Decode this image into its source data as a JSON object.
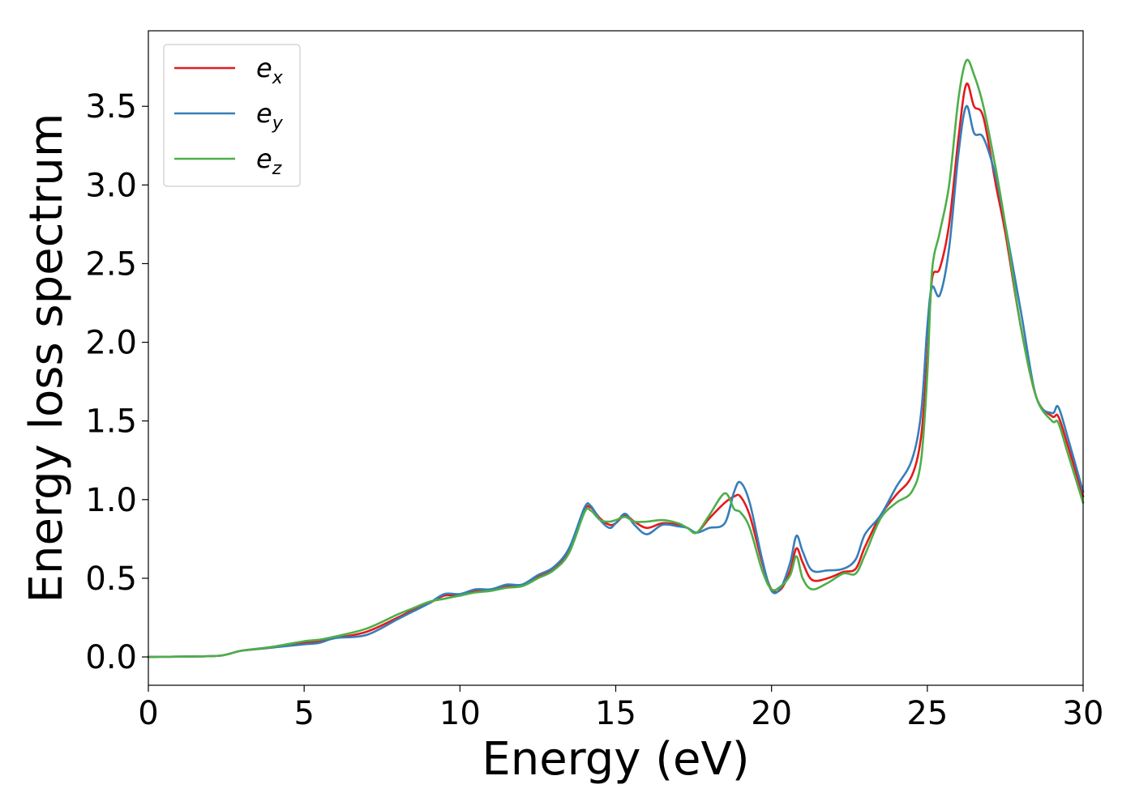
{
  "chart_data": {
    "type": "line",
    "title": "",
    "xlabel": "Energy (eV)",
    "ylabel": "Energy loss spectrum",
    "xlim": [
      0,
      30
    ],
    "ylim": [
      -0.18,
      3.98
    ],
    "xticks": [
      0,
      5,
      10,
      15,
      20,
      25,
      30
    ],
    "xtick_labels": [
      "0",
      "5",
      "10",
      "15",
      "20",
      "25",
      "30"
    ],
    "yticks": [
      0.0,
      0.5,
      1.0,
      1.5,
      2.0,
      2.5,
      3.0,
      3.5
    ],
    "ytick_labels": [
      "0.0",
      "0.5",
      "1.0",
      "1.5",
      "2.0",
      "2.5",
      "3.0",
      "3.5"
    ],
    "grid": false,
    "legend_position": "top-left",
    "series": [
      {
        "name": "e_x",
        "legend_base": "e",
        "legend_sub": "x",
        "color": "#e41a1c",
        "points": [
          [
            0,
            0
          ],
          [
            2,
            0.005
          ],
          [
            2.5,
            0.015
          ],
          [
            3,
            0.04
          ],
          [
            4,
            0.06
          ],
          [
            5,
            0.09
          ],
          [
            5.5,
            0.1
          ],
          [
            6,
            0.12
          ],
          [
            7,
            0.16
          ],
          [
            8,
            0.25
          ],
          [
            8.5,
            0.3
          ],
          [
            9,
            0.34
          ],
          [
            9.5,
            0.39
          ],
          [
            10,
            0.39
          ],
          [
            10.5,
            0.42
          ],
          [
            11,
            0.43
          ],
          [
            11.5,
            0.45
          ],
          [
            12,
            0.46
          ],
          [
            12.5,
            0.51
          ],
          [
            13,
            0.56
          ],
          [
            13.5,
            0.68
          ],
          [
            14,
            0.93
          ],
          [
            14.2,
            0.95
          ],
          [
            14.5,
            0.88
          ],
          [
            14.8,
            0.84
          ],
          [
            15,
            0.85
          ],
          [
            15.3,
            0.9
          ],
          [
            15.6,
            0.86
          ],
          [
            16,
            0.82
          ],
          [
            16.5,
            0.85
          ],
          [
            17,
            0.84
          ],
          [
            17.3,
            0.82
          ],
          [
            17.6,
            0.79
          ],
          [
            18,
            0.88
          ],
          [
            18.5,
            0.98
          ],
          [
            18.8,
            1.02
          ],
          [
            19,
            1.02
          ],
          [
            19.3,
            0.9
          ],
          [
            19.7,
            0.6
          ],
          [
            20,
            0.43
          ],
          [
            20.3,
            0.43
          ],
          [
            20.6,
            0.55
          ],
          [
            20.8,
            0.69
          ],
          [
            21,
            0.6
          ],
          [
            21.3,
            0.49
          ],
          [
            21.8,
            0.5
          ],
          [
            22.3,
            0.54
          ],
          [
            22.7,
            0.56
          ],
          [
            23,
            0.7
          ],
          [
            23.5,
            0.9
          ],
          [
            24,
            1.03
          ],
          [
            24.5,
            1.15
          ],
          [
            24.8,
            1.4
          ],
          [
            25,
            1.9
          ],
          [
            25.15,
            2.4
          ],
          [
            25.4,
            2.47
          ],
          [
            25.7,
            2.75
          ],
          [
            26,
            3.3
          ],
          [
            26.25,
            3.64
          ],
          [
            26.5,
            3.5
          ],
          [
            26.8,
            3.43
          ],
          [
            27.2,
            3.0
          ],
          [
            27.5,
            2.7
          ],
          [
            28,
            2.1
          ],
          [
            28.5,
            1.65
          ],
          [
            29,
            1.53
          ],
          [
            29.2,
            1.53
          ],
          [
            29.5,
            1.35
          ],
          [
            30,
            1.02
          ]
        ]
      },
      {
        "name": "e_y",
        "legend_base": "e",
        "legend_sub": "y",
        "color": "#377eb8",
        "points": [
          [
            0,
            0
          ],
          [
            2,
            0.005
          ],
          [
            2.5,
            0.015
          ],
          [
            3,
            0.04
          ],
          [
            4,
            0.06
          ],
          [
            5,
            0.08
          ],
          [
            5.5,
            0.09
          ],
          [
            6,
            0.12
          ],
          [
            7,
            0.14
          ],
          [
            8,
            0.24
          ],
          [
            8.5,
            0.29
          ],
          [
            9,
            0.34
          ],
          [
            9.5,
            0.4
          ],
          [
            10,
            0.4
          ],
          [
            10.5,
            0.43
          ],
          [
            11,
            0.43
          ],
          [
            11.5,
            0.46
          ],
          [
            12,
            0.46
          ],
          [
            12.5,
            0.52
          ],
          [
            13,
            0.57
          ],
          [
            13.5,
            0.69
          ],
          [
            14,
            0.95
          ],
          [
            14.2,
            0.96
          ],
          [
            14.5,
            0.87
          ],
          [
            14.8,
            0.82
          ],
          [
            15,
            0.85
          ],
          [
            15.3,
            0.91
          ],
          [
            15.6,
            0.84
          ],
          [
            16,
            0.78
          ],
          [
            16.5,
            0.84
          ],
          [
            17,
            0.83
          ],
          [
            17.3,
            0.82
          ],
          [
            17.6,
            0.79
          ],
          [
            18,
            0.82
          ],
          [
            18.5,
            0.85
          ],
          [
            18.8,
            1.05
          ],
          [
            19,
            1.11
          ],
          [
            19.3,
            0.98
          ],
          [
            19.7,
            0.62
          ],
          [
            20,
            0.42
          ],
          [
            20.3,
            0.44
          ],
          [
            20.6,
            0.6
          ],
          [
            20.8,
            0.77
          ],
          [
            21,
            0.67
          ],
          [
            21.3,
            0.55
          ],
          [
            21.8,
            0.55
          ],
          [
            22.3,
            0.56
          ],
          [
            22.7,
            0.62
          ],
          [
            23,
            0.78
          ],
          [
            23.5,
            0.9
          ],
          [
            24,
            1.08
          ],
          [
            24.5,
            1.25
          ],
          [
            24.8,
            1.55
          ],
          [
            25,
            2.1
          ],
          [
            25.15,
            2.35
          ],
          [
            25.4,
            2.3
          ],
          [
            25.7,
            2.6
          ],
          [
            26,
            3.2
          ],
          [
            26.25,
            3.5
          ],
          [
            26.5,
            3.33
          ],
          [
            26.8,
            3.3
          ],
          [
            27.2,
            3.05
          ],
          [
            27.5,
            2.75
          ],
          [
            28,
            2.2
          ],
          [
            28.5,
            1.65
          ],
          [
            29,
            1.55
          ],
          [
            29.2,
            1.59
          ],
          [
            29.5,
            1.4
          ],
          [
            30,
            1.05
          ]
        ]
      },
      {
        "name": "e_z",
        "legend_base": "e",
        "legend_sub": "z",
        "color": "#4daf4a",
        "points": [
          [
            0,
            0
          ],
          [
            2,
            0.005
          ],
          [
            2.5,
            0.015
          ],
          [
            3,
            0.04
          ],
          [
            4,
            0.065
          ],
          [
            5,
            0.1
          ],
          [
            5.5,
            0.11
          ],
          [
            6,
            0.13
          ],
          [
            7,
            0.18
          ],
          [
            8,
            0.27
          ],
          [
            8.5,
            0.31
          ],
          [
            9,
            0.35
          ],
          [
            9.5,
            0.37
          ],
          [
            10,
            0.39
          ],
          [
            10.5,
            0.41
          ],
          [
            11,
            0.42
          ],
          [
            11.5,
            0.44
          ],
          [
            12,
            0.45
          ],
          [
            12.5,
            0.5
          ],
          [
            13,
            0.55
          ],
          [
            13.5,
            0.66
          ],
          [
            14,
            0.92
          ],
          [
            14.2,
            0.93
          ],
          [
            14.5,
            0.87
          ],
          [
            14.8,
            0.86
          ],
          [
            15,
            0.87
          ],
          [
            15.3,
            0.89
          ],
          [
            15.6,
            0.86
          ],
          [
            16,
            0.86
          ],
          [
            16.5,
            0.87
          ],
          [
            17,
            0.85
          ],
          [
            17.3,
            0.82
          ],
          [
            17.6,
            0.79
          ],
          [
            18,
            0.9
          ],
          [
            18.5,
            1.04
          ],
          [
            18.8,
            0.94
          ],
          [
            19,
            0.92
          ],
          [
            19.3,
            0.82
          ],
          [
            19.7,
            0.55
          ],
          [
            20,
            0.43
          ],
          [
            20.3,
            0.45
          ],
          [
            20.6,
            0.52
          ],
          [
            20.8,
            0.64
          ],
          [
            21,
            0.5
          ],
          [
            21.3,
            0.43
          ],
          [
            21.8,
            0.47
          ],
          [
            22.3,
            0.53
          ],
          [
            22.7,
            0.53
          ],
          [
            23,
            0.65
          ],
          [
            23.5,
            0.88
          ],
          [
            24,
            0.98
          ],
          [
            24.5,
            1.05
          ],
          [
            24.8,
            1.25
          ],
          [
            25,
            1.8
          ],
          [
            25.15,
            2.45
          ],
          [
            25.4,
            2.7
          ],
          [
            25.7,
            3.0
          ],
          [
            26,
            3.55
          ],
          [
            26.25,
            3.79
          ],
          [
            26.5,
            3.7
          ],
          [
            26.8,
            3.5
          ],
          [
            27.2,
            3.1
          ],
          [
            27.5,
            2.75
          ],
          [
            28,
            2.1
          ],
          [
            28.5,
            1.65
          ],
          [
            29,
            1.5
          ],
          [
            29.2,
            1.49
          ],
          [
            29.5,
            1.3
          ],
          [
            30,
            0.98
          ]
        ]
      }
    ]
  }
}
